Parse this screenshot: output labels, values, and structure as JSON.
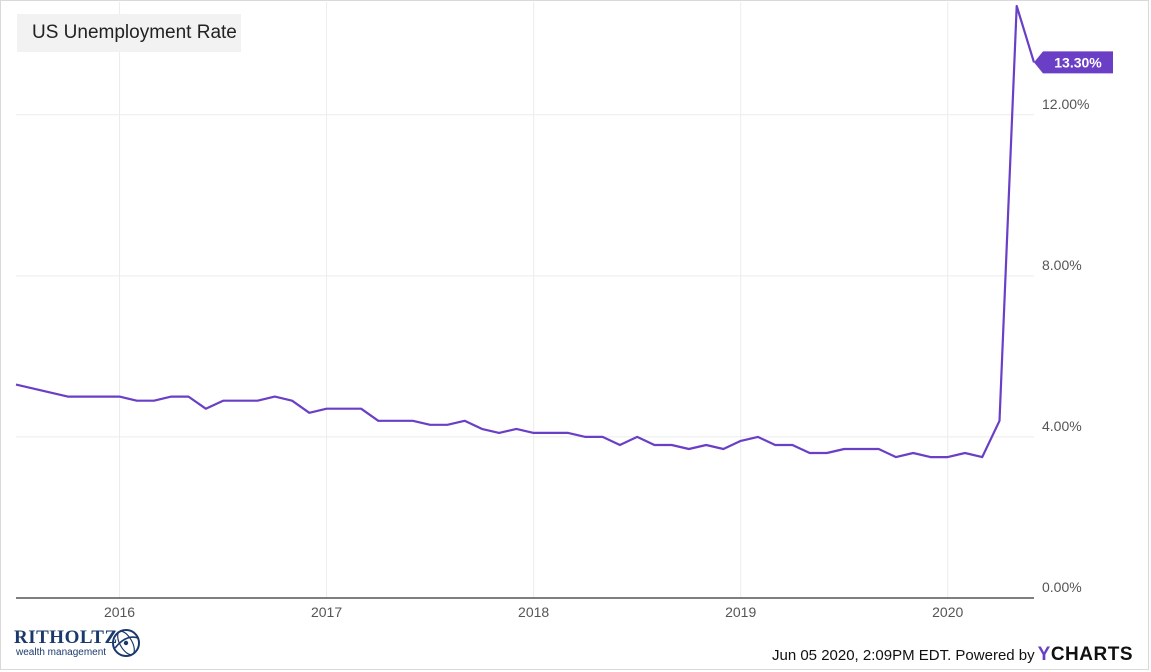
{
  "chart_data": {
    "type": "line",
    "title": "US Unemployment Rate",
    "x_ticks": [
      "2016",
      "2017",
      "2018",
      "2019",
      "2020"
    ],
    "y_ticks": [
      "0.00%",
      "4.00%",
      "8.00%",
      "12.00%"
    ],
    "ylim": [
      0,
      14.8
    ],
    "xlim": [
      "2015-07",
      "2020-06"
    ],
    "grid": true,
    "last_value_label": "13.30%",
    "series": [
      {
        "color": "#6a3fc6",
        "points": [
          [
            "2015-07",
            5.3
          ],
          [
            "2015-08",
            5.2
          ],
          [
            "2015-09",
            5.1
          ],
          [
            "2015-10",
            5.0
          ],
          [
            "2015-11",
            5.0
          ],
          [
            "2015-12",
            5.0
          ],
          [
            "2016-01",
            5.0
          ],
          [
            "2016-02",
            4.9
          ],
          [
            "2016-03",
            4.9
          ],
          [
            "2016-04",
            5.0
          ],
          [
            "2016-05",
            5.0
          ],
          [
            "2016-06",
            4.7
          ],
          [
            "2016-07",
            4.9
          ],
          [
            "2016-08",
            4.9
          ],
          [
            "2016-09",
            4.9
          ],
          [
            "2016-10",
            5.0
          ],
          [
            "2016-11",
            4.9
          ],
          [
            "2016-12",
            4.6
          ],
          [
            "2017-01",
            4.7
          ],
          [
            "2017-02",
            4.7
          ],
          [
            "2017-03",
            4.7
          ],
          [
            "2017-04",
            4.4
          ],
          [
            "2017-05",
            4.4
          ],
          [
            "2017-06",
            4.4
          ],
          [
            "2017-07",
            4.3
          ],
          [
            "2017-08",
            4.3
          ],
          [
            "2017-09",
            4.4
          ],
          [
            "2017-10",
            4.2
          ],
          [
            "2017-11",
            4.1
          ],
          [
            "2017-12",
            4.2
          ],
          [
            "2018-01",
            4.1
          ],
          [
            "2018-02",
            4.1
          ],
          [
            "2018-03",
            4.1
          ],
          [
            "2018-04",
            4.0
          ],
          [
            "2018-05",
            4.0
          ],
          [
            "2018-06",
            3.8
          ],
          [
            "2018-07",
            4.0
          ],
          [
            "2018-08",
            3.8
          ],
          [
            "2018-09",
            3.8
          ],
          [
            "2018-10",
            3.7
          ],
          [
            "2018-11",
            3.8
          ],
          [
            "2018-12",
            3.7
          ],
          [
            "2019-01",
            3.9
          ],
          [
            "2019-02",
            4.0
          ],
          [
            "2019-03",
            3.8
          ],
          [
            "2019-04",
            3.8
          ],
          [
            "2019-05",
            3.6
          ],
          [
            "2019-06",
            3.6
          ],
          [
            "2019-07",
            3.7
          ],
          [
            "2019-08",
            3.7
          ],
          [
            "2019-09",
            3.7
          ],
          [
            "2019-10",
            3.5
          ],
          [
            "2019-11",
            3.6
          ],
          [
            "2019-12",
            3.5
          ],
          [
            "2020-01",
            3.5
          ],
          [
            "2020-02",
            3.6
          ],
          [
            "2020-03",
            3.5
          ],
          [
            "2020-04",
            4.4
          ],
          [
            "2020-05",
            14.7
          ],
          [
            "2020-06",
            13.3
          ]
        ]
      }
    ]
  },
  "footer": {
    "timestamp": "Jun 05 2020, 2:09PM EDT. Powered by",
    "brand_y": "Y",
    "brand_rest": "CHARTS"
  },
  "logo": {
    "name": "RITHOLTZ",
    "subtitle": "wealth management",
    "color": "#1b3a6b"
  }
}
